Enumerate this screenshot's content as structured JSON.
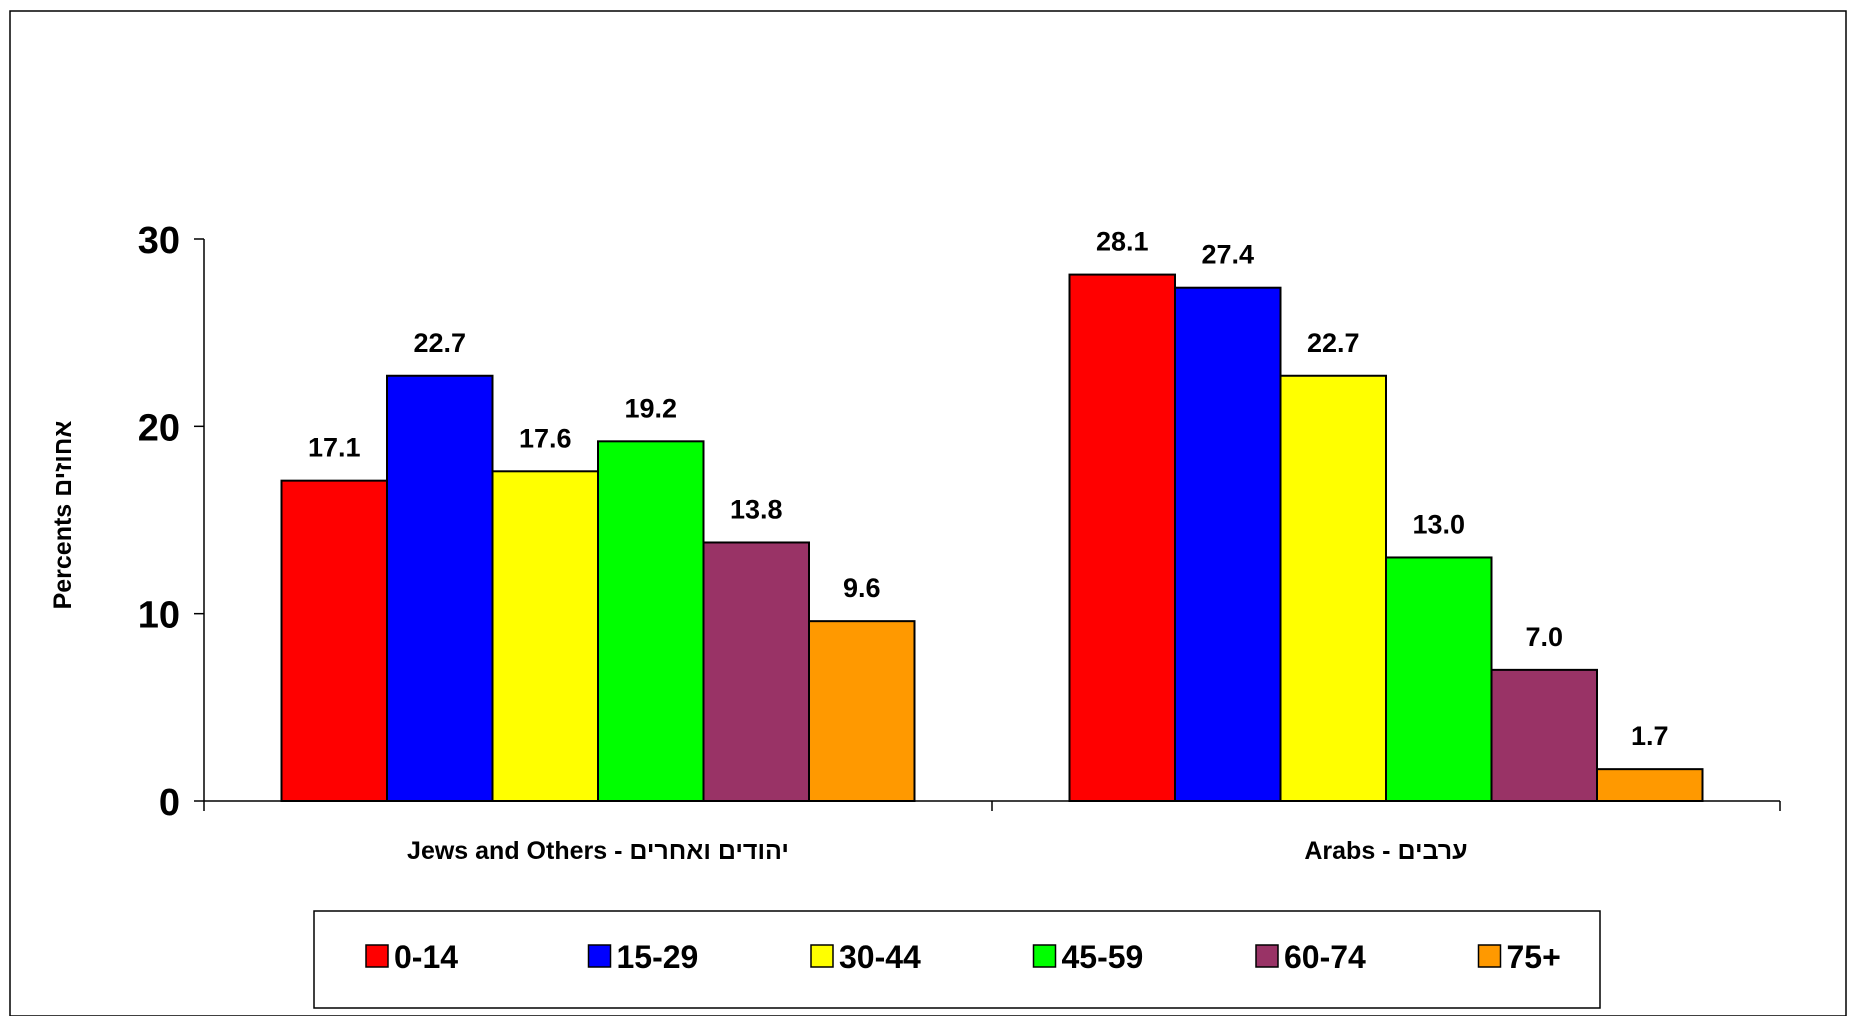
{
  "chart_data": {
    "type": "bar",
    "title": "",
    "ylabel": "Percents אחוזים",
    "xlabel": "",
    "ylim": [
      0,
      30
    ],
    "yticks": [
      "0",
      "10",
      "20",
      "30"
    ],
    "grid": false,
    "legend_position": "bottom",
    "categories": [
      "Jews and Others - יהודים ואחרים",
      "Arabs - ערבים"
    ],
    "series": [
      {
        "name": "0-14",
        "color": "#FF0000",
        "values": [
          17.1,
          28.1
        ],
        "labels": [
          "17.1",
          "28.1"
        ]
      },
      {
        "name": "15-29",
        "color": "#0000FF",
        "values": [
          22.7,
          27.4
        ],
        "labels": [
          "22.7",
          "27.4"
        ]
      },
      {
        "name": "30-44",
        "color": "#FFFF00",
        "values": [
          17.6,
          22.7
        ],
        "labels": [
          "17.6",
          "22.7"
        ]
      },
      {
        "name": "45-59",
        "color": "#00FF00",
        "values": [
          19.2,
          13.0
        ],
        "labels": [
          "19.2",
          "13.0"
        ]
      },
      {
        "name": "60-74",
        "color": "#993366",
        "values": [
          13.8,
          7.0
        ],
        "labels": [
          "13.8",
          "7.0"
        ]
      },
      {
        "name": "75+",
        "color": "#FF9900",
        "values": [
          9.6,
          1.7
        ],
        "labels": [
          "9.6",
          "1.7"
        ]
      }
    ]
  }
}
